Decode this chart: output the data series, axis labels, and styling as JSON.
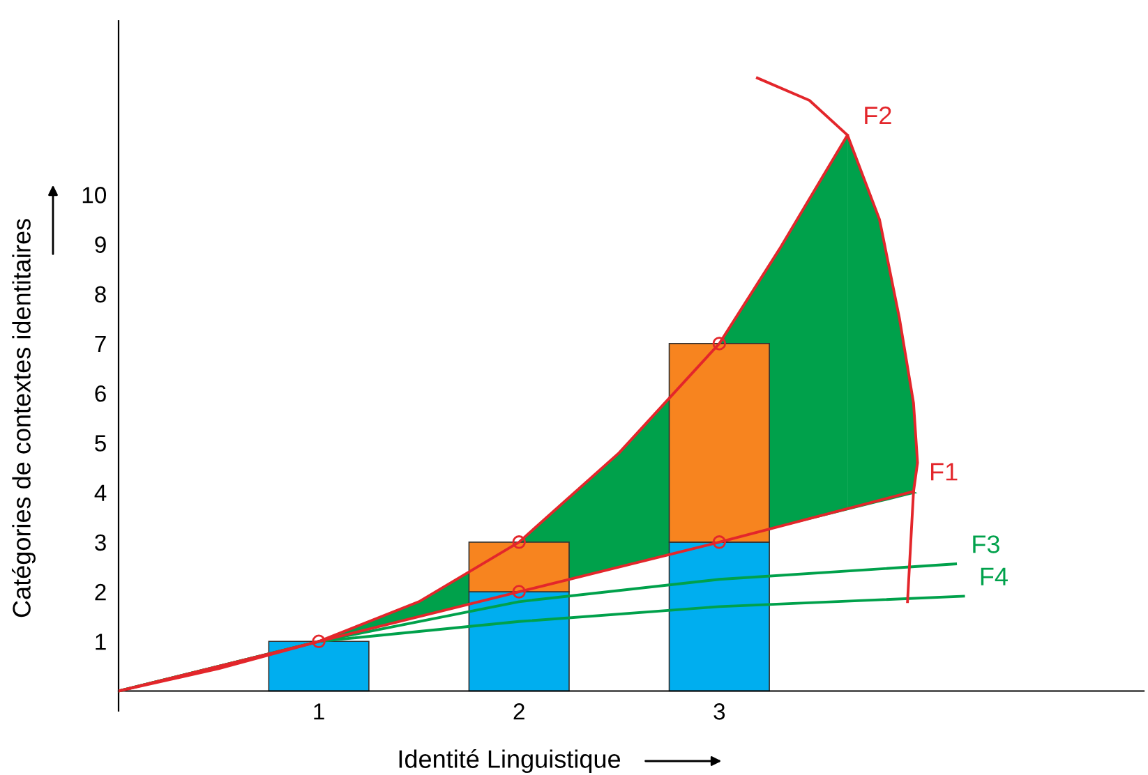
{
  "chart_data": {
    "type": "bar",
    "stacked": true,
    "xlabel": "Identité Linguistique",
    "ylabel": "Catégories de contextes identitaires",
    "xlim": [
      0,
      5.12
    ],
    "ylim": [
      -0.4,
      13.5
    ],
    "xticks": [
      1,
      2,
      3
    ],
    "yticks": [
      1,
      2,
      3,
      4,
      5,
      6,
      7,
      8,
      9,
      10
    ],
    "grid": false,
    "legend": false,
    "x": [
      1,
      2,
      3
    ],
    "series": [
      {
        "color": "#00aeef",
        "values": [
          1,
          2,
          3
        ]
      },
      {
        "color": "#f7841f",
        "values": [
          null,
          1,
          4
        ]
      },
      {
        "type": "line",
        "name": "F3",
        "color": "#00a14b",
        "x": [
          0,
          1,
          2,
          3,
          4.18
        ],
        "values": [
          0,
          1,
          1.8,
          2.25,
          2.56
        ]
      },
      {
        "type": "line",
        "name": "F4",
        "color": "#00a14b",
        "x": [
          0,
          1,
          2,
          3,
          4.22
        ],
        "values": [
          0,
          1,
          1.4,
          1.7,
          1.91
        ]
      },
      {
        "type": "line",
        "name": "F1",
        "color": "#e3262b",
        "x": [
          0,
          1,
          2,
          3,
          3.97
        ],
        "values": [
          0,
          1,
          2,
          3,
          4.02
        ]
      },
      {
        "type": "line",
        "name": "F2",
        "color": "#e3262b",
        "x": [
          0,
          0.5,
          1,
          1.5,
          2,
          2.5,
          3,
          3.3,
          3.64
        ],
        "values": [
          0,
          0.45,
          1,
          1.8,
          3,
          4.8,
          7,
          8.9,
          11.2
        ],
        "lower": [
          null,
          null,
          1,
          1.5,
          2,
          2.5,
          3,
          3.3,
          3.64
        ],
        "upper": [
          null,
          null,
          1,
          1.8,
          3,
          4.8,
          7,
          8.9,
          11.2
        ]
      },
      {
        "type": "line",
        "color": "#e3262b",
        "x": [
          3.19,
          3.45,
          3.64,
          3.8,
          3.9,
          3.97,
          3.99,
          3.97,
          3.94
        ],
        "values": [
          12.35,
          11.9,
          11.2,
          9.5,
          7.5,
          5.8,
          4.6,
          4.02,
          1.8
        ],
        "lower": [
          null,
          null,
          3.64,
          3.8,
          3.9,
          3.97,
          3.99,
          4.02,
          null
        ],
        "upper": [
          null,
          null,
          11.2,
          9.5,
          7.5,
          5.8,
          4.6,
          4.02,
          null
        ]
      },
      {
        "type": "scatter",
        "color": "#e3262b",
        "marker": "circle",
        "x": [
          1,
          2,
          2,
          3,
          3
        ],
        "values": [
          1,
          2,
          3,
          3,
          7
        ]
      }
    ]
  }
}
